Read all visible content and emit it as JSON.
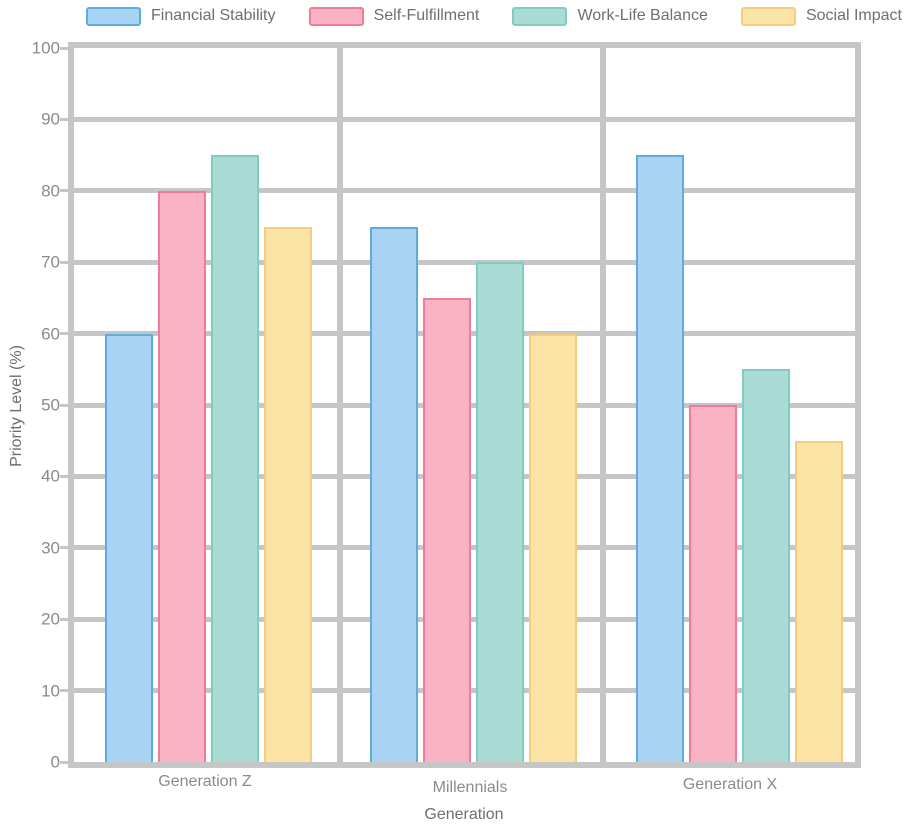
{
  "chart_data": {
    "type": "bar",
    "title": "",
    "xlabel": "Generation",
    "ylabel": "Priority Level (%)",
    "categories": [
      "Generation Z",
      "Millennials",
      "Generation X"
    ],
    "series": [
      {
        "name": "Financial Stability",
        "values": [
          60,
          75,
          85
        ],
        "fill": "#a9d3f2",
        "stroke": "#5fadde"
      },
      {
        "name": "Self-Fulfillment",
        "values": [
          80,
          65,
          50
        ],
        "fill": "#fab3c5",
        "stroke": "#f07c9d"
      },
      {
        "name": "Work-Life Balance",
        "values": [
          85,
          70,
          55
        ],
        "fill": "#aadcd5",
        "stroke": "#7fccc3"
      },
      {
        "name": "Social Impact",
        "values": [
          75,
          60,
          45
        ],
        "fill": "#fbe4a6",
        "stroke": "#f3cd7c"
      }
    ],
    "ylim": [
      0,
      100
    ],
    "ytick_step": 10,
    "yticks": [
      0,
      10,
      20,
      30,
      40,
      50,
      60,
      70,
      80,
      90,
      100
    ],
    "grid": true,
    "gridlines_behind_bars": true,
    "legend_position": "top",
    "panel_dividers": true,
    "colors": {
      "grid": "#c6c6c6",
      "tick_text": "#8b8b8b",
      "axis_title_text": "#6f6f6f",
      "legend_text": "#6f6f6f",
      "background": "#ffffff"
    }
  }
}
